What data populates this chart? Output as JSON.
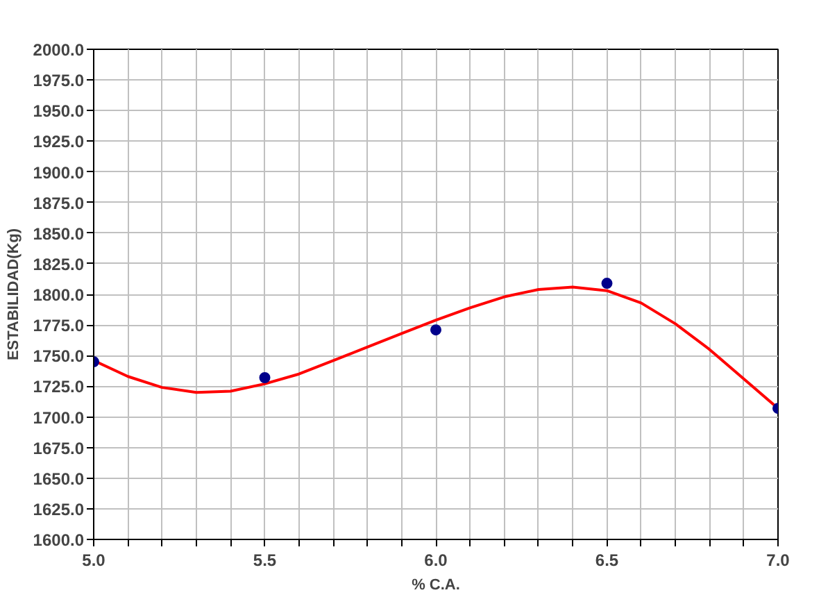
{
  "chart_data": {
    "type": "scatter",
    "xlabel": "% C.A.",
    "ylabel": "ESTABILIDAD(Kg)",
    "x": [
      5.0,
      5.5,
      6.0,
      6.5,
      7.0
    ],
    "series": [
      {
        "color": "#00008b",
        "marker": "circle",
        "values": [
          1745,
          1732,
          1771,
          1809,
          1707
        ]
      },
      {
        "type": "line",
        "color": "#ff0000",
        "marker": "none",
        "x": [
          5.0,
          5.1,
          5.2,
          5.3,
          5.4,
          5.5,
          5.6,
          5.7,
          5.8,
          5.9,
          6.0,
          6.1,
          6.2,
          6.3,
          6.4,
          6.5,
          6.6,
          6.7,
          6.8,
          6.9,
          7.0
        ],
        "values": [
          1746,
          1733,
          1724,
          1720,
          1721,
          1727,
          1735,
          1746,
          1757,
          1768,
          1779,
          1789,
          1798,
          1804,
          1806,
          1803,
          1793,
          1776,
          1755,
          1731,
          1707
        ]
      }
    ],
    "xlim": [
      5.0,
      7.0
    ],
    "xticks": [
      {
        "value": 5.0,
        "label": "5.0"
      },
      {
        "value": 5.1,
        "label": null
      },
      {
        "value": 5.2,
        "label": null
      },
      {
        "value": 5.3,
        "label": null
      },
      {
        "value": 5.4,
        "label": null
      },
      {
        "value": 5.5,
        "label": "5.5"
      },
      {
        "value": 5.6,
        "label": null
      },
      {
        "value": 5.7,
        "label": null
      },
      {
        "value": 5.8,
        "label": null
      },
      {
        "value": 5.9,
        "label": null
      },
      {
        "value": 6.0,
        "label": "6.0"
      },
      {
        "value": 6.1,
        "label": null
      },
      {
        "value": 6.2,
        "label": null
      },
      {
        "value": 6.3,
        "label": null
      },
      {
        "value": 6.4,
        "label": null
      },
      {
        "value": 6.5,
        "label": "6.5"
      },
      {
        "value": 6.6,
        "label": null
      },
      {
        "value": 6.7,
        "label": null
      },
      {
        "value": 6.8,
        "label": null
      },
      {
        "value": 6.9,
        "label": null
      },
      {
        "value": 7.0,
        "label": "7.0"
      }
    ],
    "ylim": [
      1600,
      2000
    ],
    "yticks": [
      {
        "value": 1600,
        "label": "1600.0"
      },
      {
        "value": 1625,
        "label": "1625.0"
      },
      {
        "value": 1650,
        "label": "1650.0"
      },
      {
        "value": 1675,
        "label": "1675.0"
      },
      {
        "value": 1700,
        "label": "1700.0"
      },
      {
        "value": 1725,
        "label": "1725.0"
      },
      {
        "value": 1750,
        "label": "1750.0"
      },
      {
        "value": 1775,
        "label": "1775.0"
      },
      {
        "value": 1800,
        "label": "1800.0"
      },
      {
        "value": 1825,
        "label": "1825.0"
      },
      {
        "value": 1850,
        "label": "1850.0"
      },
      {
        "value": 1875,
        "label": "1875.0"
      },
      {
        "value": 1900,
        "label": "1900.0"
      },
      {
        "value": 1925,
        "label": "1925.0"
      },
      {
        "value": 1950,
        "label": "1950.0"
      },
      {
        "value": 1975,
        "label": "1975.0"
      },
      {
        "value": 2000,
        "label": "2000.0"
      }
    ],
    "grid": true
  }
}
